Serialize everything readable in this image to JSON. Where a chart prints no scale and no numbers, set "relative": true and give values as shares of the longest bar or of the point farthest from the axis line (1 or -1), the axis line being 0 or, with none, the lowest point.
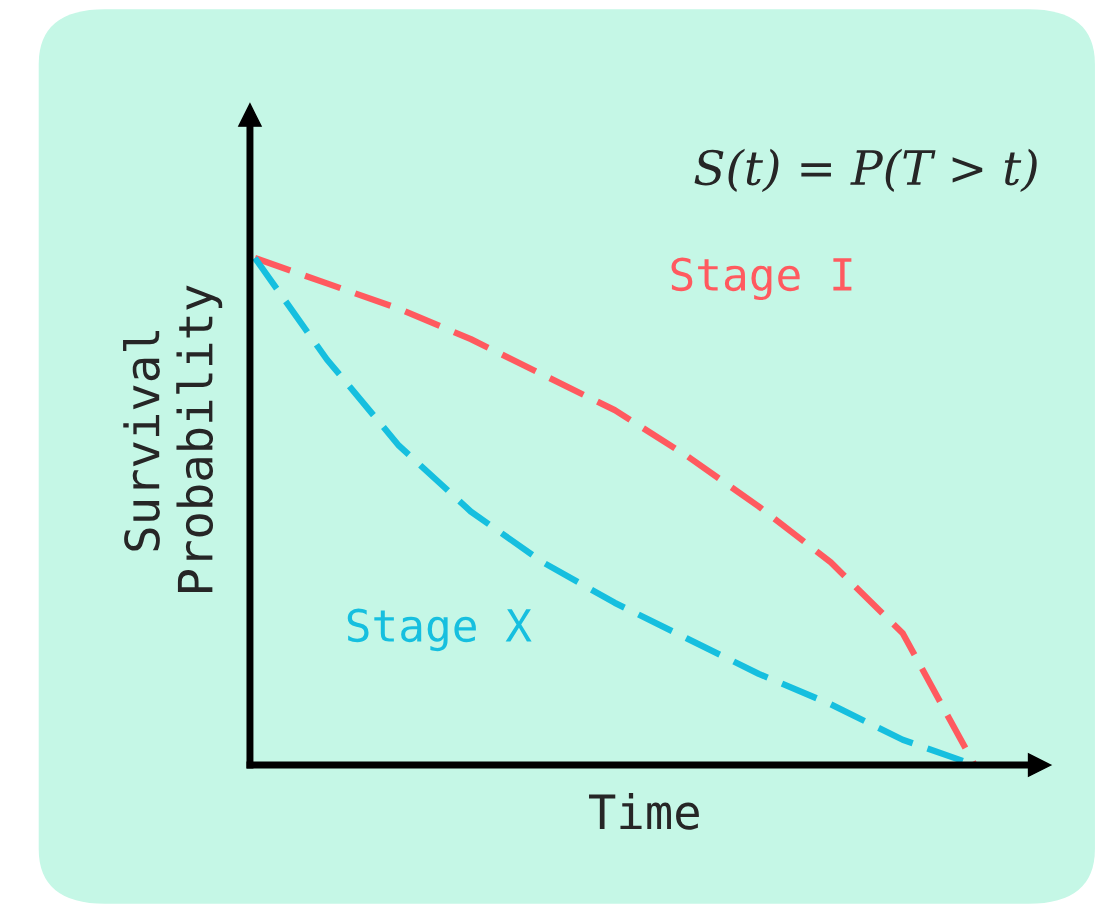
{
  "chart_data": {
    "type": "line",
    "title": "S(t) = P(T > t)",
    "xlabel": "Time",
    "ylabel": "Survival\nProbability",
    "relative": true,
    "line_style": "dashed",
    "legend": false,
    "categories": [
      null,
      null,
      null,
      null,
      null,
      null,
      null,
      null,
      null,
      null,
      null
    ],
    "series": [
      {
        "name": "Stage I",
        "color": "#ff5a5f",
        "values": [
          1.0,
          0.95,
          0.9,
          0.84,
          0.77,
          0.7,
          0.61,
          0.51,
          0.4,
          0.26,
          0.0
        ]
      },
      {
        "name": "Stage X",
        "color": "#16bfdf",
        "values": [
          1.0,
          0.8,
          0.63,
          0.5,
          0.4,
          0.32,
          0.25,
          0.18,
          0.12,
          0.05,
          0.0
        ]
      }
    ]
  }
}
